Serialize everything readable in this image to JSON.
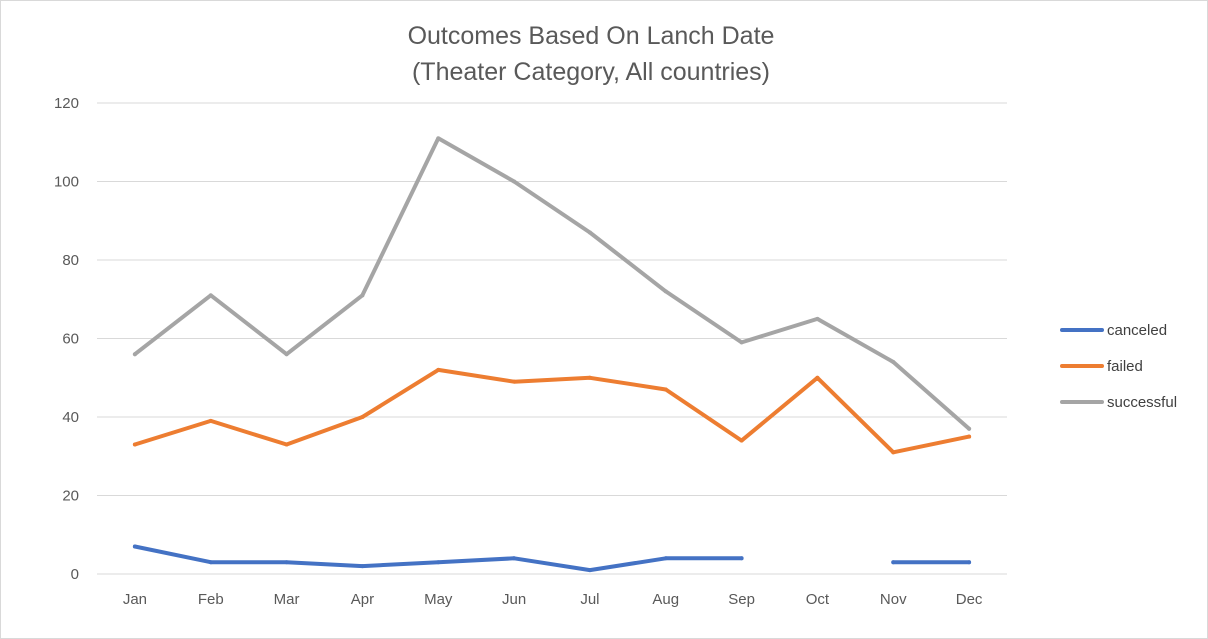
{
  "chart_data": {
    "type": "line",
    "title": "Outcomes Based On Lanch Date",
    "subtitle": "(Theater Category, All countries)",
    "xlabel": "",
    "ylabel": "",
    "categories": [
      "Jan",
      "Feb",
      "Mar",
      "Apr",
      "May",
      "Jun",
      "Jul",
      "Aug",
      "Sep",
      "Oct",
      "Nov",
      "Dec"
    ],
    "ylim": [
      0,
      120
    ],
    "yticks": [
      "0",
      "20",
      "40",
      "60",
      "80",
      "100",
      "120"
    ],
    "grid": true,
    "legend_position": "right",
    "series": [
      {
        "name": "canceled",
        "color": "#4472C4",
        "values": [
          7,
          3,
          3,
          2,
          3,
          4,
          1,
          4,
          4,
          null,
          3,
          3
        ]
      },
      {
        "name": "failed",
        "color": "#ED7D31",
        "values": [
          33,
          39,
          33,
          40,
          52,
          49,
          50,
          47,
          34,
          50,
          31,
          35
        ]
      },
      {
        "name": "successful",
        "color": "#A5A5A5",
        "values": [
          56,
          71,
          56,
          71,
          111,
          100,
          87,
          72,
          59,
          65,
          54,
          37
        ]
      }
    ]
  }
}
